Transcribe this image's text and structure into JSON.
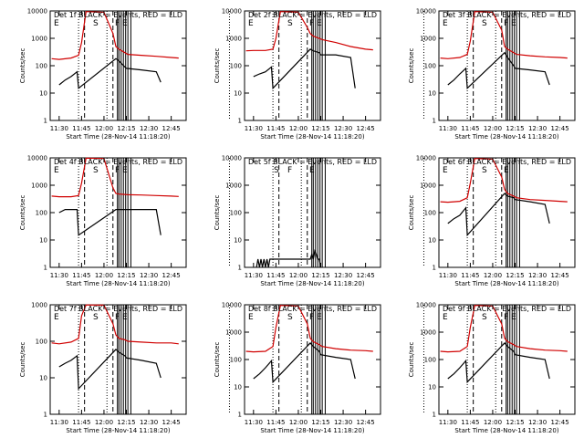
{
  "chart_data": [
    {
      "type": "line",
      "title": "Det 1f BLACK = Events, RED = LLD",
      "xlabel": "Start Time (28-Nov-14 11:18:20)",
      "ylabel": "Counts/sec",
      "ylog": true,
      "ylim": [
        1,
        10000
      ],
      "xlim": [
        "11:24",
        "12:55"
      ],
      "x_ticks": [
        "11:30",
        "11:45",
        "12:00",
        "12:15",
        "12:30",
        "12:45"
      ],
      "y_ticks": [
        "1",
        "10",
        "100",
        "1000",
        "10000"
      ],
      "markers": [
        "E",
        "S",
        "F",
        "E"
      ],
      "series": [
        {
          "color": "#d00000",
          "x": [
            "11:25",
            "11:30",
            "11:38",
            "11:43",
            "11:45",
            "11:48",
            "12:00",
            "12:06",
            "12:08",
            "12:10",
            "12:14",
            "12:16",
            "12:25",
            "12:35",
            "12:45",
            "12:50"
          ],
          "values": [
            180,
            170,
            190,
            240,
            700,
            9500,
            9000,
            1500,
            500,
            400,
            300,
            260,
            240,
            220,
            200,
            190
          ]
        },
        {
          "color": "#000000",
          "x": [
            "11:30",
            "11:34",
            "11:38",
            "11:42",
            "11:43",
            "12:08",
            "12:10",
            "12:14",
            "12:15",
            "12:25",
            "12:35",
            "12:38"
          ],
          "values": [
            20,
            30,
            40,
            60,
            15,
            180,
            150,
            90,
            80,
            70,
            60,
            25
          ]
        }
      ]
    },
    {
      "type": "line",
      "title": "Det 2f BLACK = Events, RED = LLD",
      "xlabel": "Start Time (28-Nov-14 11:18:20)",
      "ylabel": "Counts/sec",
      "ylog": true,
      "ylim": [
        1,
        10000
      ],
      "xlim": [
        "11:24",
        "12:55"
      ],
      "x_ticks": [
        "11:30",
        "11:45",
        "12:00",
        "12:15",
        "12:30",
        "12:45"
      ],
      "y_ticks": [
        "1",
        "10",
        "100",
        "1000",
        "10000"
      ],
      "markers": [
        "E",
        "S",
        "F",
        "E"
      ],
      "series": [
        {
          "color": "#d00000",
          "x": [
            "11:25",
            "11:30",
            "11:38",
            "11:43",
            "11:45",
            "11:48",
            "12:00",
            "12:06",
            "12:08",
            "12:10",
            "12:14",
            "12:16",
            "12:25",
            "12:35",
            "12:45",
            "12:50"
          ],
          "values": [
            350,
            360,
            360,
            400,
            1000,
            9500,
            9000,
            2500,
            1500,
            1200,
            1000,
            900,
            700,
            500,
            400,
            380
          ]
        },
        {
          "color": "#000000",
          "x": [
            "11:30",
            "11:34",
            "11:38",
            "11:42",
            "11:43",
            "12:08",
            "12:10",
            "12:14",
            "12:15",
            "12:25",
            "12:35",
            "12:38"
          ],
          "values": [
            40,
            50,
            60,
            90,
            15,
            400,
            350,
            300,
            250,
            250,
            200,
            15
          ]
        }
      ]
    },
    {
      "type": "line",
      "title": "Det 3f BLACK = Events, RED = LLD",
      "xlabel": "Start Time (28-Nov-14 11:18:20)",
      "ylabel": "Counts/sec",
      "ylog": true,
      "ylim": [
        1,
        10000
      ],
      "xlim": [
        "11:24",
        "12:55"
      ],
      "x_ticks": [
        "11:30",
        "11:45",
        "12:00",
        "12:15",
        "12:30",
        "12:45"
      ],
      "y_ticks": [
        "1",
        "10",
        "100",
        "1000",
        "10000"
      ],
      "markers": [
        "E",
        "S",
        "F",
        "E"
      ],
      "series": [
        {
          "color": "#d00000",
          "x": [
            "11:25",
            "11:30",
            "11:38",
            "11:43",
            "11:45",
            "11:48",
            "12:00",
            "12:06",
            "12:08",
            "12:10",
            "12:14",
            "12:16",
            "12:25",
            "12:35",
            "12:45",
            "12:50"
          ],
          "values": [
            190,
            180,
            200,
            260,
            800,
            9500,
            9000,
            2000,
            500,
            400,
            300,
            260,
            230,
            210,
            200,
            190
          ]
        },
        {
          "color": "#000000",
          "x": [
            "11:30",
            "11:34",
            "11:38",
            "11:42",
            "11:43",
            "12:08",
            "12:10",
            "12:14",
            "12:15",
            "12:25",
            "12:35",
            "12:38"
          ],
          "values": [
            20,
            30,
            50,
            80,
            15,
            300,
            200,
            100,
            80,
            70,
            60,
            20
          ]
        }
      ]
    },
    {
      "type": "line",
      "title": "Det 4f BLACK = Events, RED = LLD",
      "xlabel": "Start Time (28-Nov-14 11:18:20)",
      "ylabel": "Counts/sec",
      "ylog": true,
      "ylim": [
        1,
        10000
      ],
      "xlim": [
        "11:24",
        "12:55"
      ],
      "x_ticks": [
        "11:30",
        "11:45",
        "12:00",
        "12:15",
        "12:30",
        "12:45"
      ],
      "y_ticks": [
        "1",
        "10",
        "100",
        "1000",
        "10000"
      ],
      "markers": [
        "E",
        "S",
        "F",
        "E"
      ],
      "series": [
        {
          "color": "#d00000",
          "x": [
            "11:25",
            "11:30",
            "11:38",
            "11:43",
            "11:45",
            "11:48",
            "12:00",
            "12:06",
            "12:08",
            "12:10",
            "12:14",
            "12:16",
            "12:25",
            "12:35",
            "12:45",
            "12:50"
          ],
          "values": [
            400,
            380,
            380,
            420,
            1200,
            9800,
            9500,
            800,
            500,
            480,
            460,
            450,
            440,
            420,
            400,
            390
          ]
        },
        {
          "color": "#000000",
          "x": [
            "11:30",
            "11:34",
            "11:38",
            "11:42",
            "11:43",
            "12:08",
            "12:10",
            "12:14",
            "12:15",
            "12:25",
            "12:35",
            "12:38"
          ],
          "values": [
            100,
            130,
            130,
            130,
            15,
            130,
            130,
            130,
            130,
            130,
            130,
            15
          ]
        }
      ]
    },
    {
      "type": "line",
      "title": "Det 5f BLACK = Events, RED = LLD",
      "xlabel": "Start Time (28-Nov-14 11:18:20)",
      "ylabel": "Counts/sec",
      "ylog": true,
      "ylim": [
        1,
        10000
      ],
      "xlim": [
        "11:24",
        "12:55"
      ],
      "x_ticks": [
        "11:30",
        "11:45",
        "12:00",
        "12:15",
        "12:30",
        "12:45"
      ],
      "y_ticks": [
        "1",
        "10",
        "100",
        "1000",
        "10000"
      ],
      "markers": [
        "S",
        "F",
        "E"
      ],
      "series": [
        {
          "color": "#000000",
          "x": [
            "11:32",
            "11:33",
            "11:34",
            "11:35",
            "11:36",
            "11:37",
            "11:38",
            "11:39",
            "11:40",
            "11:41",
            "12:08",
            "12:09",
            "12:10",
            "12:11",
            "12:12",
            "12:13",
            "12:14",
            "12:15"
          ],
          "values": [
            1,
            2,
            1,
            2,
            1,
            2,
            1,
            2,
            1,
            2,
            2,
            3,
            2,
            4,
            3,
            2,
            2,
            1
          ]
        }
      ]
    },
    {
      "type": "line",
      "title": "Det 6f BLACK = Events, RED = LLD",
      "xlabel": "Start Time (28-Nov-14 11:18:20)",
      "ylabel": "Counts/sec",
      "ylog": true,
      "ylim": [
        1,
        10000
      ],
      "xlim": [
        "11:24",
        "12:55"
      ],
      "x_ticks": [
        "11:30",
        "11:45",
        "12:00",
        "12:15",
        "12:30",
        "12:45"
      ],
      "y_ticks": [
        "1",
        "10",
        "100",
        "1000",
        "10000"
      ],
      "markers": [
        "E",
        "S",
        "E"
      ],
      "series": [
        {
          "color": "#d00000",
          "x": [
            "11:25",
            "11:30",
            "11:38",
            "11:43",
            "11:45",
            "11:48",
            "12:00",
            "12:06",
            "12:08",
            "12:10",
            "12:14",
            "12:16",
            "12:25",
            "12:35",
            "12:45",
            "12:50"
          ],
          "values": [
            250,
            240,
            260,
            350,
            1200,
            9500,
            9000,
            2000,
            700,
            500,
            400,
            350,
            300,
            280,
            260,
            250
          ]
        },
        {
          "color": "#000000",
          "x": [
            "11:30",
            "11:34",
            "11:38",
            "11:42",
            "11:43",
            "12:08",
            "12:10",
            "12:14",
            "12:15",
            "12:25",
            "12:35",
            "12:38"
          ],
          "values": [
            40,
            60,
            80,
            150,
            15,
            500,
            400,
            350,
            300,
            250,
            200,
            40
          ]
        }
      ]
    },
    {
      "type": "line",
      "title": "Det 7f BLACK = Events, RED = LLD",
      "xlabel": "Start Time (28-Nov-14 11:18:20)",
      "ylabel": "Counts/sec",
      "ylog": true,
      "ylim": [
        1,
        1000
      ],
      "xlim": [
        "11:24",
        "12:55"
      ],
      "x_ticks": [
        "11:30",
        "11:45",
        "12:00",
        "12:15",
        "12:30",
        "12:45"
      ],
      "y_ticks": [
        "1",
        "10",
        "100",
        "1000"
      ],
      "markers": [
        "E",
        "S",
        "F",
        "E"
      ],
      "series": [
        {
          "color": "#d00000",
          "x": [
            "11:25",
            "11:30",
            "11:38",
            "11:43",
            "11:45",
            "11:48",
            "12:00",
            "12:06",
            "12:08",
            "12:10",
            "12:14",
            "12:16",
            "12:25",
            "12:35",
            "12:45",
            "12:50"
          ],
          "values": [
            90,
            85,
            95,
            120,
            500,
            990,
            980,
            300,
            150,
            120,
            110,
            100,
            95,
            90,
            90,
            85
          ]
        },
        {
          "color": "#000000",
          "x": [
            "11:30",
            "11:34",
            "11:38",
            "11:42",
            "11:43",
            "12:08",
            "12:10",
            "12:14",
            "12:15",
            "12:25",
            "12:35",
            "12:38"
          ],
          "values": [
            20,
            25,
            30,
            40,
            5,
            60,
            50,
            40,
            35,
            30,
            25,
            10
          ]
        }
      ]
    },
    {
      "type": "line",
      "title": "Det 8f BLACK = Events, RED = LLD",
      "xlabel": "Start Time (28-Nov-14 11:18:20)",
      "ylabel": "Counts/sec",
      "ylog": true,
      "ylim": [
        1,
        10000
      ],
      "xlim": [
        "11:24",
        "12:55"
      ],
      "x_ticks": [
        "11:30",
        "11:45",
        "12:00",
        "12:15",
        "12:30",
        "12:45"
      ],
      "y_ticks": [
        "1",
        "10",
        "100",
        "1000",
        "10000"
      ],
      "markers": [
        "E",
        "S",
        "F",
        "E"
      ],
      "series": [
        {
          "color": "#d00000",
          "x": [
            "11:25",
            "11:30",
            "11:38",
            "11:43",
            "11:45",
            "11:48",
            "12:00",
            "12:06",
            "12:08",
            "12:10",
            "12:14",
            "12:16",
            "12:25",
            "12:35",
            "12:45",
            "12:50"
          ],
          "values": [
            200,
            190,
            200,
            300,
            1500,
            9500,
            9000,
            2000,
            600,
            450,
            350,
            300,
            250,
            220,
            210,
            200
          ]
        },
        {
          "color": "#000000",
          "x": [
            "11:30",
            "11:34",
            "11:38",
            "11:42",
            "11:43",
            "12:08",
            "12:10",
            "12:14",
            "12:15",
            "12:25",
            "12:35",
            "12:38"
          ],
          "values": [
            20,
            30,
            50,
            90,
            15,
            400,
            300,
            200,
            150,
            120,
            100,
            20
          ]
        }
      ]
    },
    {
      "type": "line",
      "title": "Det 9f BLACK = Events, RED = LLD",
      "xlabel": "Start Time (28-Nov-14 11:18:20)",
      "ylabel": "Counts/sec",
      "ylog": true,
      "ylim": [
        1,
        10000
      ],
      "xlim": [
        "11:24",
        "12:55"
      ],
      "x_ticks": [
        "11:30",
        "11:45",
        "12:00",
        "12:15",
        "12:30",
        "12:45"
      ],
      "y_ticks": [
        "1",
        "10",
        "100",
        "1000",
        "10000"
      ],
      "markers": [
        "E",
        "S",
        "F",
        "E"
      ],
      "series": [
        {
          "color": "#d00000",
          "x": [
            "11:25",
            "11:30",
            "11:38",
            "11:43",
            "11:45",
            "11:48",
            "12:00",
            "12:06",
            "12:08",
            "12:10",
            "12:14",
            "12:16",
            "12:25",
            "12:35",
            "12:45",
            "12:50"
          ],
          "values": [
            200,
            190,
            200,
            300,
            1500,
            9500,
            9000,
            2000,
            600,
            450,
            350,
            300,
            250,
            220,
            210,
            200
          ]
        },
        {
          "color": "#000000",
          "x": [
            "11:30",
            "11:34",
            "11:38",
            "11:42",
            "11:43",
            "12:08",
            "12:10",
            "12:14",
            "12:15",
            "12:25",
            "12:35",
            "12:38"
          ],
          "values": [
            20,
            30,
            50,
            90,
            15,
            400,
            300,
            200,
            150,
            120,
            100,
            20
          ]
        }
      ]
    }
  ]
}
